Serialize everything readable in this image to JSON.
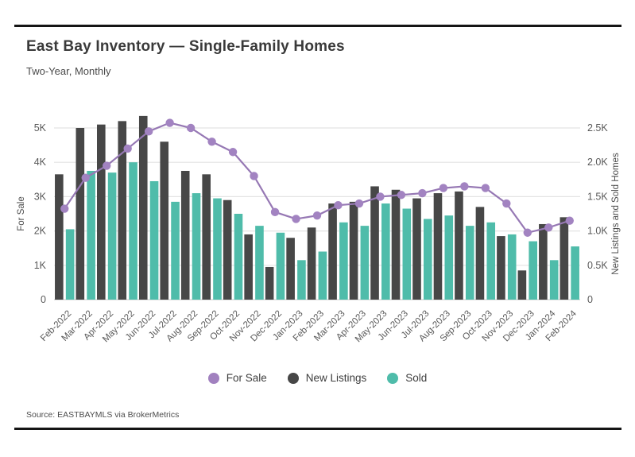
{
  "header": {
    "title": "East Bay Inventory — Single-Family Homes",
    "subtitle": "Two-Year, Monthly"
  },
  "legend": [
    {
      "label": "For Sale",
      "color": "#a181bf"
    },
    {
      "label": "New Listings",
      "color": "#474747"
    },
    {
      "label": "Sold",
      "color": "#4fbcaa"
    }
  ],
  "source": "Source: EASTBAYMLS via BrokerMetrics",
  "colors": {
    "for_sale_line": "#9678b4",
    "for_sale_dot": "#a283c1",
    "new_listings_bar": "#474747",
    "sold_bar": "#4fbcaa",
    "gridline": "#e4e4e4",
    "baseline": "#d2d2d2",
    "axis_text": "#595959"
  },
  "chart_data": {
    "type": "bar+line combo",
    "title": "East Bay Inventory — Single-Family Homes",
    "subtitle": "Two-Year, Monthly",
    "grid": true,
    "legend_position": "bottom",
    "categories": [
      "Feb-2022",
      "Mar-2022",
      "Apr-2022",
      "May-2022",
      "Jun-2022",
      "Jul-2022",
      "Aug-2022",
      "Sep-2022",
      "Oct-2022",
      "Nov-2022",
      "Dec-2022",
      "Jan-2023",
      "Feb-2023",
      "Mar-2023",
      "Apr-2023",
      "May-2023",
      "Jun-2023",
      "Jul-2023",
      "Aug-2023",
      "Sep-2023",
      "Oct-2023",
      "Nov-2023",
      "Dec-2023",
      "Jan-2024",
      "Feb-2024"
    ],
    "left_axis": {
      "label": "For Sale",
      "ticks": [
        "0",
        "1K",
        "2K",
        "3K",
        "4K",
        "5K"
      ],
      "tick_values": [
        0,
        1000,
        2000,
        3000,
        4000,
        5000
      ],
      "max": 5400
    },
    "right_axis": {
      "label": "New Listings and Sold Homes",
      "ticks": [
        "0",
        "0.5K",
        "1.0K",
        "1.5K",
        "2.0K",
        "2.5K"
      ],
      "tick_values": [
        0,
        500,
        1000,
        1500,
        2000,
        2500
      ],
      "max": 2700
    },
    "series": [
      {
        "name": "For Sale",
        "type": "line",
        "axis": "left",
        "values": [
          2650,
          3550,
          3900,
          4400,
          4900,
          5150,
          5000,
          4600,
          4300,
          3600,
          2550,
          2350,
          2450,
          2750,
          2800,
          3000,
          3050,
          3100,
          3250,
          3300,
          3250,
          2800,
          1950,
          2100,
          2300
        ]
      },
      {
        "name": "New Listings",
        "type": "bar",
        "axis": "right",
        "values": [
          1825,
          2500,
          2550,
          2600,
          2675,
          2300,
          1875,
          1825,
          1450,
          950,
          475,
          900,
          1050,
          1400,
          1425,
          1650,
          1600,
          1475,
          1550,
          1575,
          1350,
          925,
          425,
          1100,
          1200
        ]
      },
      {
        "name": "Sold",
        "type": "bar",
        "axis": "right",
        "values": [
          1025,
          1875,
          1850,
          2000,
          1725,
          1425,
          1550,
          1475,
          1250,
          1075,
          975,
          575,
          700,
          1125,
          1075,
          1400,
          1325,
          1175,
          1225,
          1075,
          1125,
          950,
          850,
          575,
          775
        ]
      }
    ]
  }
}
